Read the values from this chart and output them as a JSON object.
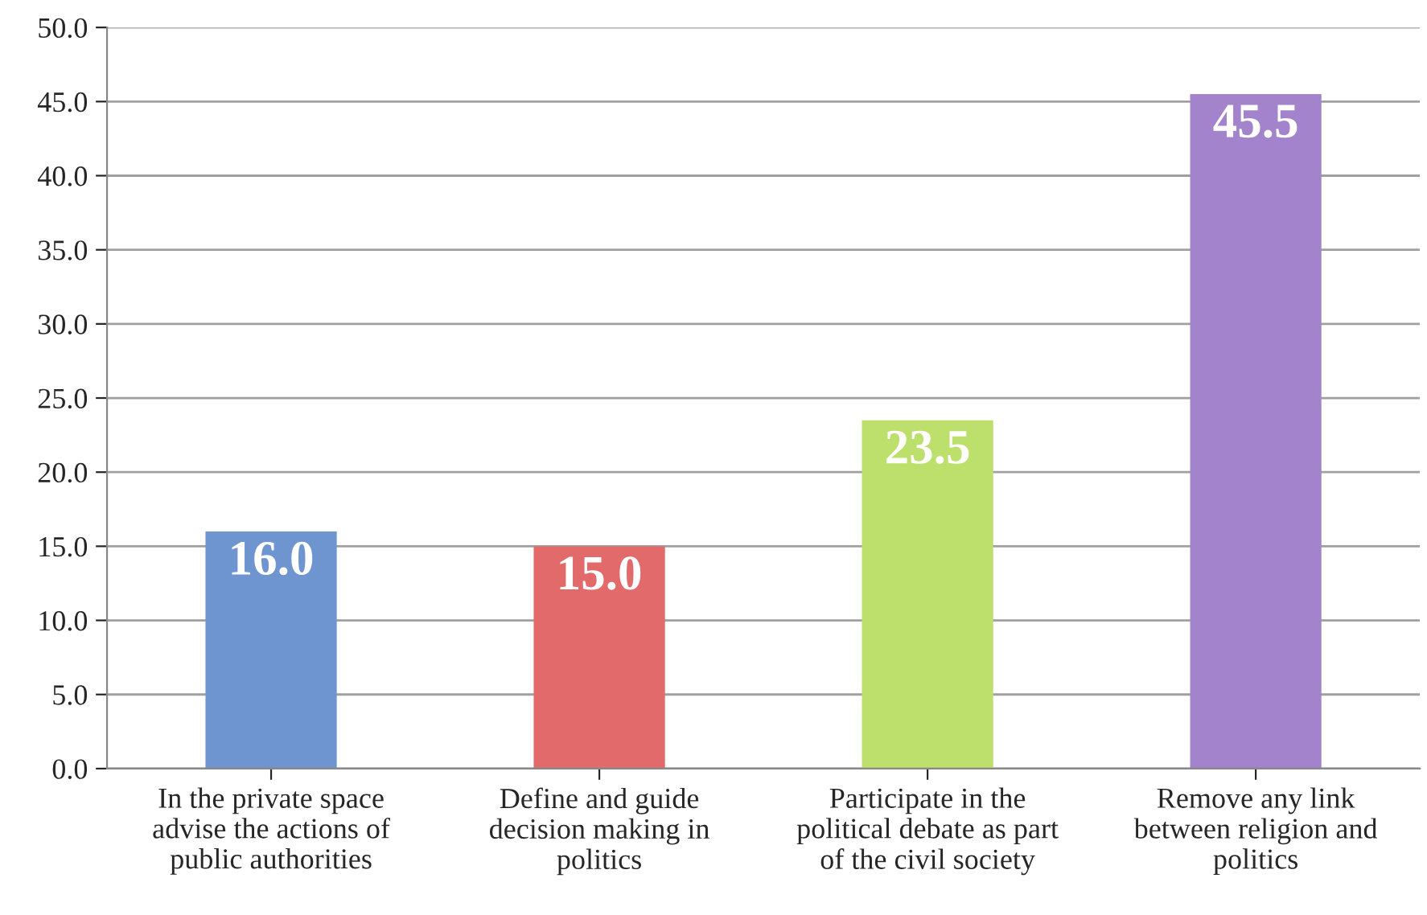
{
  "chart_data": {
    "type": "bar",
    "categories": [
      "In the private space\nadvise the actions of\npublic authorities",
      "Define and guide\ndecision making in\npolitics",
      "Participate in the\npolitical debate as part\nof the civil society",
      "Remove any link\nbetween religion and\npolitics"
    ],
    "values": [
      16.0,
      15.0,
      23.5,
      45.5
    ],
    "colors": [
      "#6f95d0",
      "#e36a6a",
      "#bddf6c",
      "#a283cc"
    ],
    "ylim": [
      0,
      50
    ],
    "yticks": [
      {
        "value": 0,
        "label": "0.0"
      },
      {
        "value": 5,
        "label": "5.0"
      },
      {
        "value": 10,
        "label": "10.0"
      },
      {
        "value": 15,
        "label": "15.0"
      },
      {
        "value": 20,
        "label": "20.0"
      },
      {
        "value": 25,
        "label": "25.0"
      },
      {
        "value": 30,
        "label": "30.0"
      },
      {
        "value": 35,
        "label": "35.0"
      },
      {
        "value": 40,
        "label": "40.0"
      },
      {
        "value": 45,
        "label": "45.0"
      },
      {
        "value": 50,
        "label": "50.0"
      }
    ],
    "grid": "y",
    "value_labels": [
      "16.0",
      "15.0",
      "23.5",
      "45.5"
    ]
  }
}
